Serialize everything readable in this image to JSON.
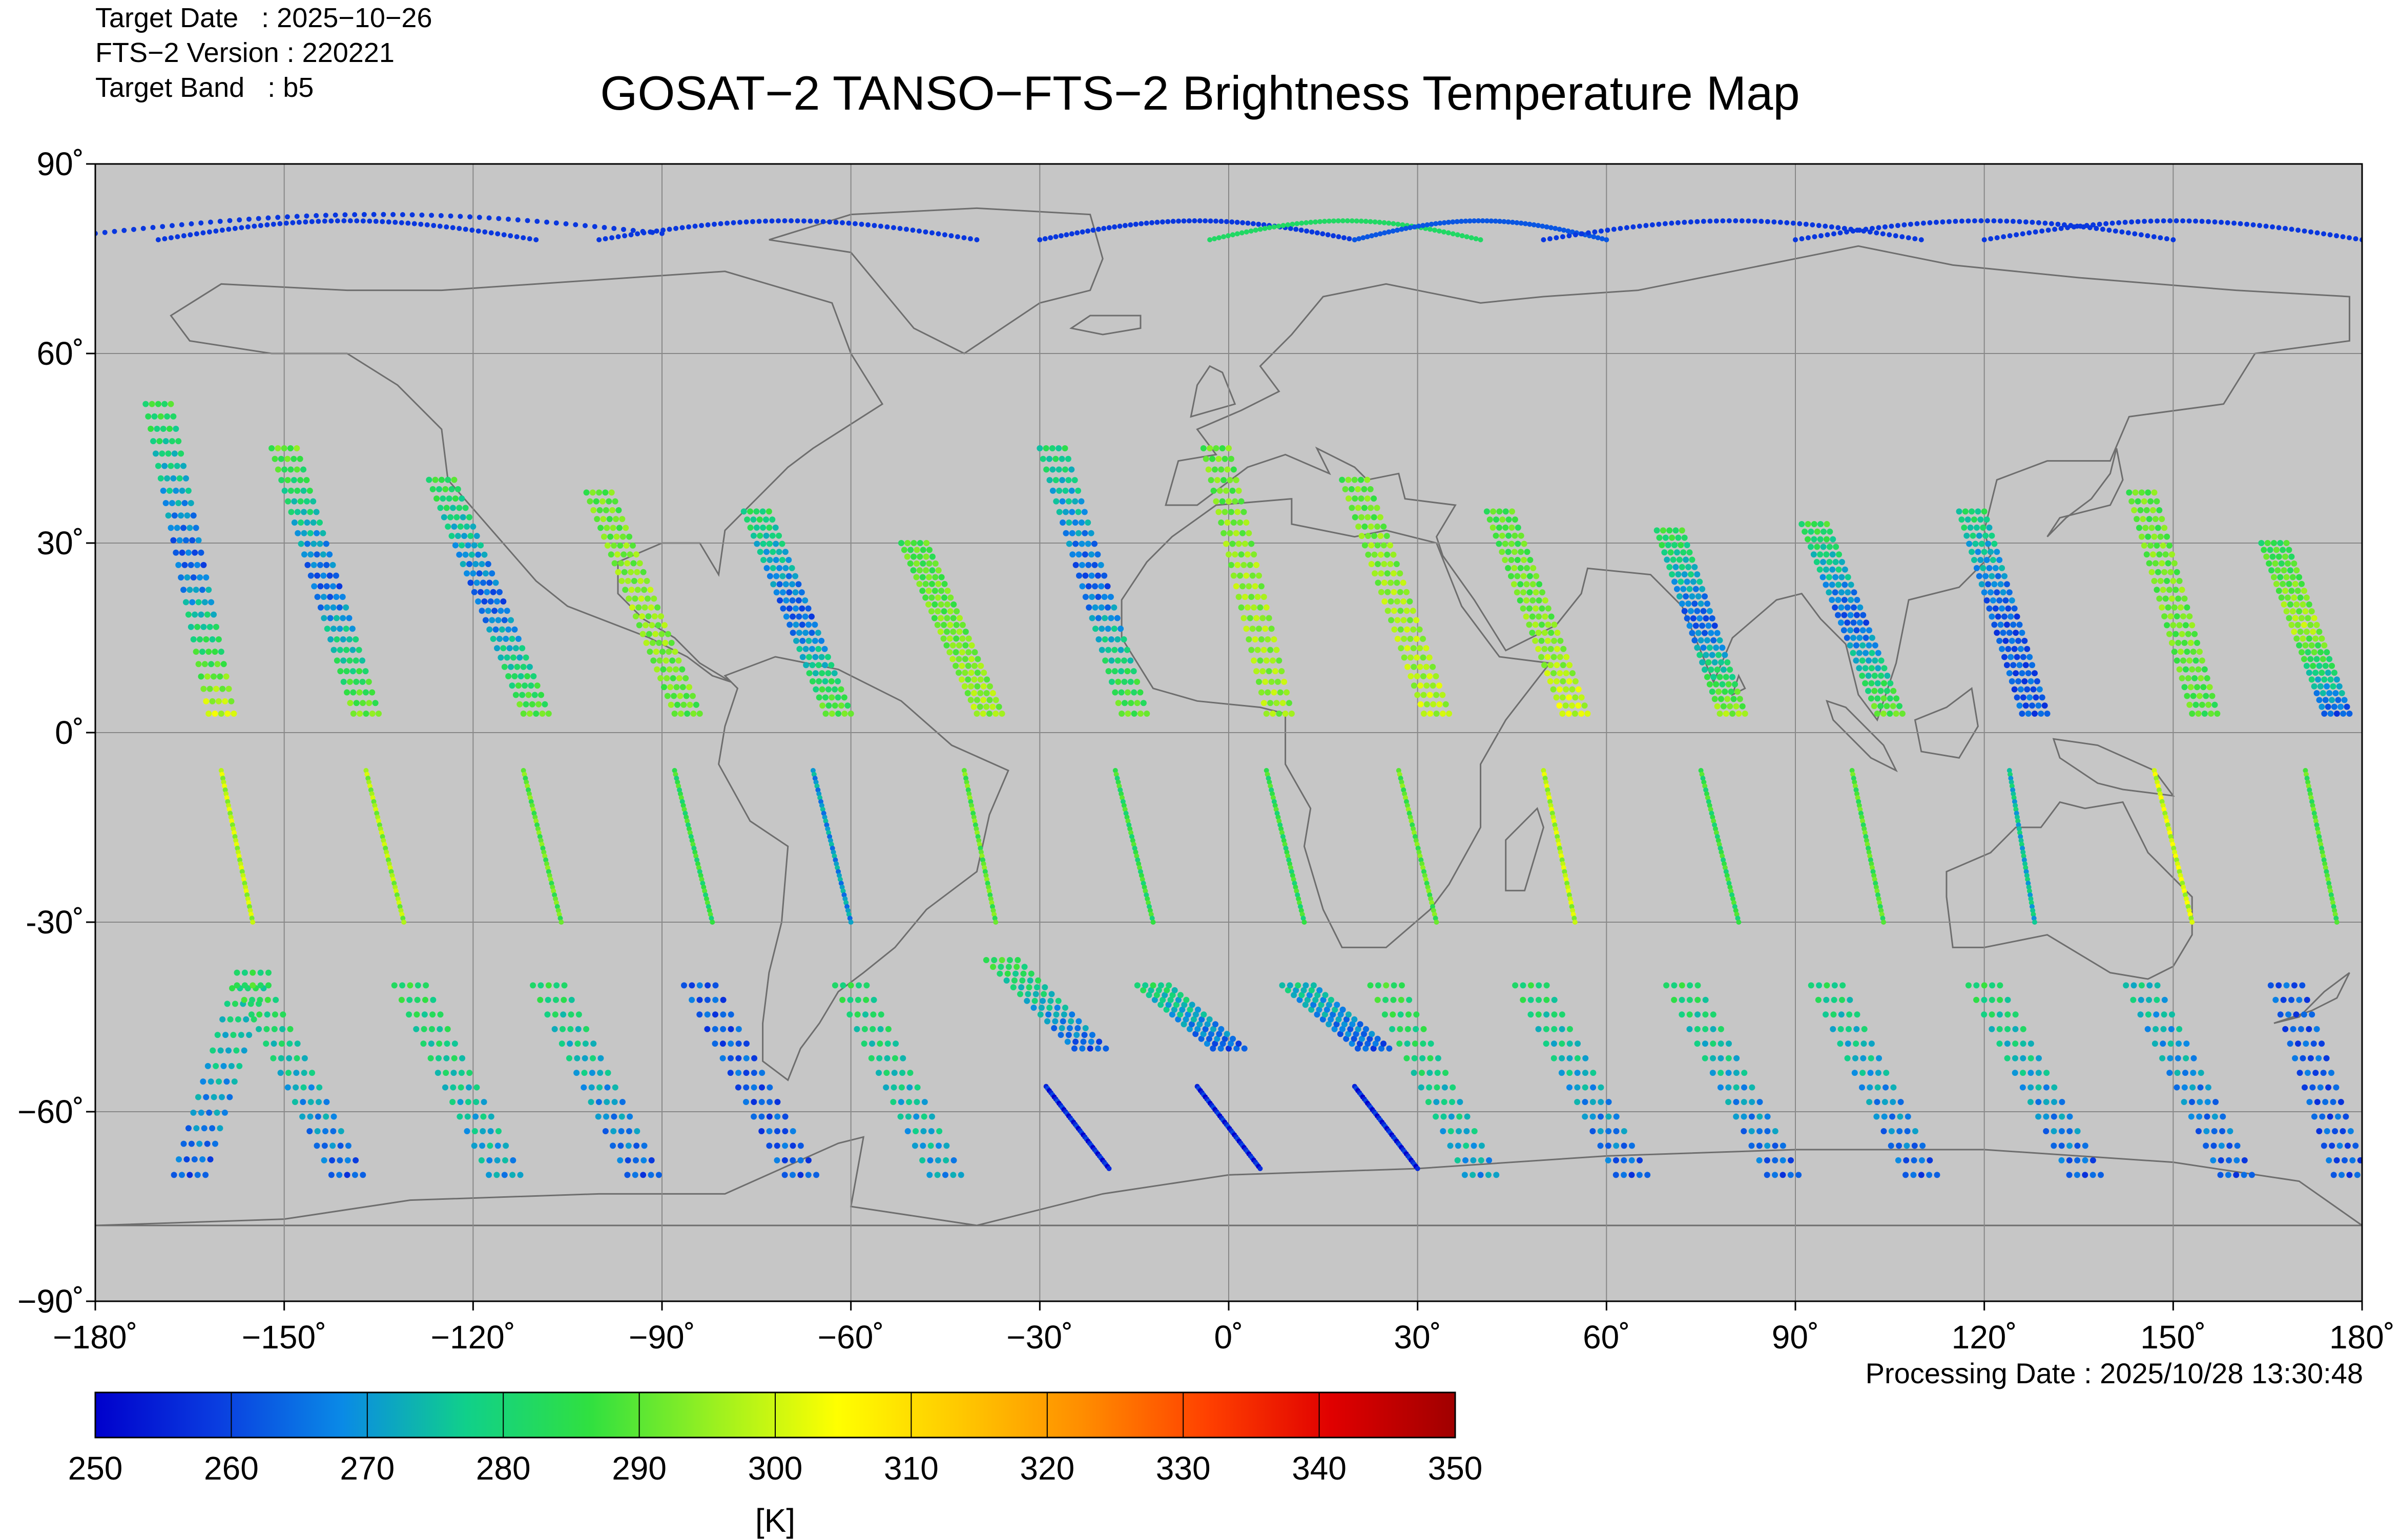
{
  "header": {
    "target_date_label": "Target Date   : 2025−10−26",
    "version_label": "FTS−2 Version : 220221",
    "band_label": "Target Band   : b5",
    "title": "GOSAT−2 TANSO−FTS−2 Brightness Temperature Map"
  },
  "footer": {
    "processing_date": "Processing Date : 2025/10/28 13:30:48"
  },
  "map": {
    "background_color": "#c6c6c6",
    "lon_range": [
      -180,
      180
    ],
    "lat_range": [
      -90,
      90
    ],
    "lon_ticks": [
      -180,
      -150,
      -120,
      -90,
      -60,
      -30,
      0,
      30,
      60,
      90,
      120,
      150,
      180
    ],
    "lon_tick_labels": [
      "−180˚",
      "−150˚",
      "−120˚",
      "−90˚",
      "−60˚",
      "−30˚",
      "0˚",
      "30˚",
      "60˚",
      "90˚",
      "120˚",
      "150˚",
      "180˚"
    ],
    "lat_ticks": [
      90,
      60,
      30,
      0,
      -30,
      -60,
      -90
    ],
    "lat_tick_labels": [
      "90˚",
      "60˚",
      "30˚",
      "0˚",
      "-30˚",
      "−60˚",
      "−90˚"
    ],
    "grid": true
  },
  "colorbar": {
    "min": 250,
    "max": 350,
    "tick_labels": [
      "250",
      "260",
      "270",
      "280",
      "290",
      "300",
      "310",
      "320",
      "330",
      "340",
      "350"
    ],
    "unit": "[K]",
    "colors": [
      "#0000cc",
      "#0a3ee0",
      "#0a8ae6",
      "#10d08a",
      "#30e040",
      "#9af020",
      "#ffff00",
      "#ffc800",
      "#ff8c00",
      "#ff4000",
      "#e00000",
      "#a00000"
    ]
  },
  "chart_data": {
    "type": "scatter",
    "title": "GOSAT−2 TANSO−FTS−2 Brightness Temperature Map",
    "xlabel": "",
    "ylabel": "",
    "xlim": [
      -180,
      180
    ],
    "ylim": [
      -90,
      90
    ],
    "value_unit": "[K]",
    "value_range": [
      250,
      350
    ],
    "swath_segments_note_free": true,
    "swaths": [
      {
        "x": [
          -160,
          -170
        ],
        "y": [
          3,
          52
        ],
        "t": [
          300,
          262,
          285
        ]
      },
      {
        "x": [
          -137,
          -150
        ],
        "y": [
          3,
          45
        ],
        "t": [
          292,
          262,
          290
        ]
      },
      {
        "x": [
          -110,
          -125
        ],
        "y": [
          3,
          40
        ],
        "t": [
          290,
          262,
          285
        ]
      },
      {
        "x": [
          -86,
          -100
        ],
        "y": [
          3,
          38
        ],
        "t": [
          290,
          295,
          290
        ]
      },
      {
        "x": [
          -62,
          -75
        ],
        "y": [
          3,
          35
        ],
        "t": [
          290,
          262,
          282
        ]
      },
      {
        "x": [
          -38,
          -50
        ],
        "y": [
          3,
          30
        ],
        "t": [
          295,
          292,
          288
        ]
      },
      {
        "x": [
          -15,
          -28
        ],
        "y": [
          3,
          45
        ],
        "t": [
          290,
          262,
          280
        ]
      },
      {
        "x": [
          8,
          -2
        ],
        "y": [
          3,
          45
        ],
        "t": [
          295,
          295,
          290
        ]
      },
      {
        "x": [
          33,
          20
        ],
        "y": [
          3,
          40
        ],
        "t": [
          298,
          295,
          290
        ]
      },
      {
        "x": [
          55,
          43
        ],
        "y": [
          3,
          35
        ],
        "t": [
          300,
          292,
          288
        ]
      },
      {
        "x": [
          80,
          70
        ],
        "y": [
          3,
          32
        ],
        "t": [
          295,
          262,
          285
        ]
      },
      {
        "x": [
          105,
          93
        ],
        "y": [
          3,
          33
        ],
        "t": [
          290,
          262,
          285
        ]
      },
      {
        "x": [
          128,
          118
        ],
        "y": [
          3,
          35
        ],
        "t": [
          262,
          262,
          280
        ]
      },
      {
        "x": [
          155,
          145
        ],
        "y": [
          3,
          38
        ],
        "t": [
          288,
          292,
          290
        ]
      },
      {
        "x": [
          176,
          166
        ],
        "y": [
          3,
          30
        ],
        "t": [
          262,
          296,
          285
        ]
      }
    ],
    "southern_swaths": [
      {
        "x": [
          -165,
          -155
        ],
        "y": [
          -70,
          -38
        ],
        "t": [
          262,
          282
        ]
      },
      {
        "x": [
          -140,
          -155
        ],
        "y": [
          -70,
          -40
        ],
        "t": [
          262,
          285
        ]
      },
      {
        "x": [
          -115,
          -130
        ],
        "y": [
          -70,
          -40
        ],
        "t": [
          270,
          283
        ]
      },
      {
        "x": [
          -93,
          -108
        ],
        "y": [
          -70,
          -40
        ],
        "t": [
          262,
          282
        ]
      },
      {
        "x": [
          -68,
          -84
        ],
        "y": [
          -70,
          -40
        ],
        "t": [
          262,
          262
        ]
      },
      {
        "x": [
          -45,
          -60
        ],
        "y": [
          -70,
          -40
        ],
        "t": [
          270,
          282
        ]
      },
      {
        "x": [
          -22,
          -36
        ],
        "y": [
          -50,
          -36
        ],
        "t": [
          262,
          285
        ]
      },
      {
        "x": [
          0,
          -12
        ],
        "y": [
          -50,
          -40
        ],
        "t": [
          262,
          280
        ]
      },
      {
        "x": [
          23,
          11
        ],
        "y": [
          -50,
          -40
        ],
        "t": [
          262,
          275
        ]
      },
      {
        "x": [
          40,
          25
        ],
        "y": [
          -70,
          -40
        ],
        "t": [
          270,
          285
        ]
      },
      {
        "x": [
          64,
          48
        ],
        "y": [
          -70,
          -40
        ],
        "t": [
          262,
          282
        ]
      },
      {
        "x": [
          88,
          72
        ],
        "y": [
          -70,
          -40
        ],
        "t": [
          262,
          282
        ]
      },
      {
        "x": [
          110,
          95
        ],
        "y": [
          -70,
          -40
        ],
        "t": [
          262,
          280
        ]
      },
      {
        "x": [
          136,
          120
        ],
        "y": [
          -70,
          -40
        ],
        "t": [
          262,
          282
        ]
      },
      {
        "x": [
          160,
          145
        ],
        "y": [
          -70,
          -40
        ],
        "t": [
          262,
          275
        ]
      },
      {
        "x": [
          178,
          168
        ],
        "y": [
          -70,
          -40
        ],
        "t": [
          262,
          262
        ]
      }
    ],
    "tracks": [
      {
        "x": [
          -160,
          -155
        ],
        "y": [
          -6,
          -30
        ],
        "t": 298
      },
      {
        "x": [
          -137,
          -131
        ],
        "y": [
          -6,
          -30
        ],
        "t": 296
      },
      {
        "x": [
          -112,
          -106
        ],
        "y": [
          -6,
          -30
        ],
        "t": 290
      },
      {
        "x": [
          -88,
          -82
        ],
        "y": [
          -6,
          -30
        ],
        "t": 285
      },
      {
        "x": [
          -66,
          -60
        ],
        "y": [
          -6,
          -30
        ],
        "t": 270
      },
      {
        "x": [
          -42,
          -37
        ],
        "y": [
          -6,
          -30
        ],
        "t": 290
      },
      {
        "x": [
          -18,
          -12
        ],
        "y": [
          -6,
          -30
        ],
        "t": 285
      },
      {
        "x": [
          6,
          12
        ],
        "y": [
          -6,
          -30
        ],
        "t": 285
      },
      {
        "x": [
          27,
          33
        ],
        "y": [
          -6,
          -30
        ],
        "t": 290
      },
      {
        "x": [
          50,
          55
        ],
        "y": [
          -6,
          -30
        ],
        "t": 298
      },
      {
        "x": [
          75,
          81
        ],
        "y": [
          -6,
          -30
        ],
        "t": 285
      },
      {
        "x": [
          99,
          104
        ],
        "y": [
          -6,
          -30
        ],
        "t": 288
      },
      {
        "x": [
          124,
          128
        ],
        "y": [
          -6,
          -30
        ],
        "t": 275
      },
      {
        "x": [
          147,
          153
        ],
        "y": [
          -6,
          -30
        ],
        "t": 300
      },
      {
        "x": [
          171,
          176
        ],
        "y": [
          -6,
          -30
        ],
        "t": 288
      },
      {
        "x": [
          -29,
          -19
        ],
        "y": [
          -56,
          -69
        ],
        "t": 255
      },
      {
        "x": [
          -5,
          5
        ],
        "y": [
          -56,
          -69
        ],
        "t": 255
      },
      {
        "x": [
          20,
          30
        ],
        "y": [
          -56,
          -69
        ],
        "t": 255
      }
    ],
    "arctic_arcs": [
      {
        "x": [
          -180,
          -90
        ],
        "y": [
          79,
          82
        ],
        "t": 258
      },
      {
        "x": [
          -170,
          -110
        ],
        "y": [
          78,
          81
        ],
        "t": 258
      },
      {
        "x": [
          -100,
          -40
        ],
        "y": [
          78,
          81
        ],
        "t": 258
      },
      {
        "x": [
          -30,
          20
        ],
        "y": [
          78,
          81
        ],
        "t": 258
      },
      {
        "x": [
          -3,
          40
        ],
        "y": [
          78,
          81
        ],
        "t": 282
      },
      {
        "x": [
          20,
          60
        ],
        "y": [
          78,
          81
        ],
        "t": 262
      },
      {
        "x": [
          50,
          110
        ],
        "y": [
          78,
          81
        ],
        "t": 258
      },
      {
        "x": [
          90,
          150
        ],
        "y": [
          78,
          81
        ],
        "t": 258
      },
      {
        "x": [
          120,
          180
        ],
        "y": [
          78,
          81
        ],
        "t": 258
      }
    ]
  }
}
